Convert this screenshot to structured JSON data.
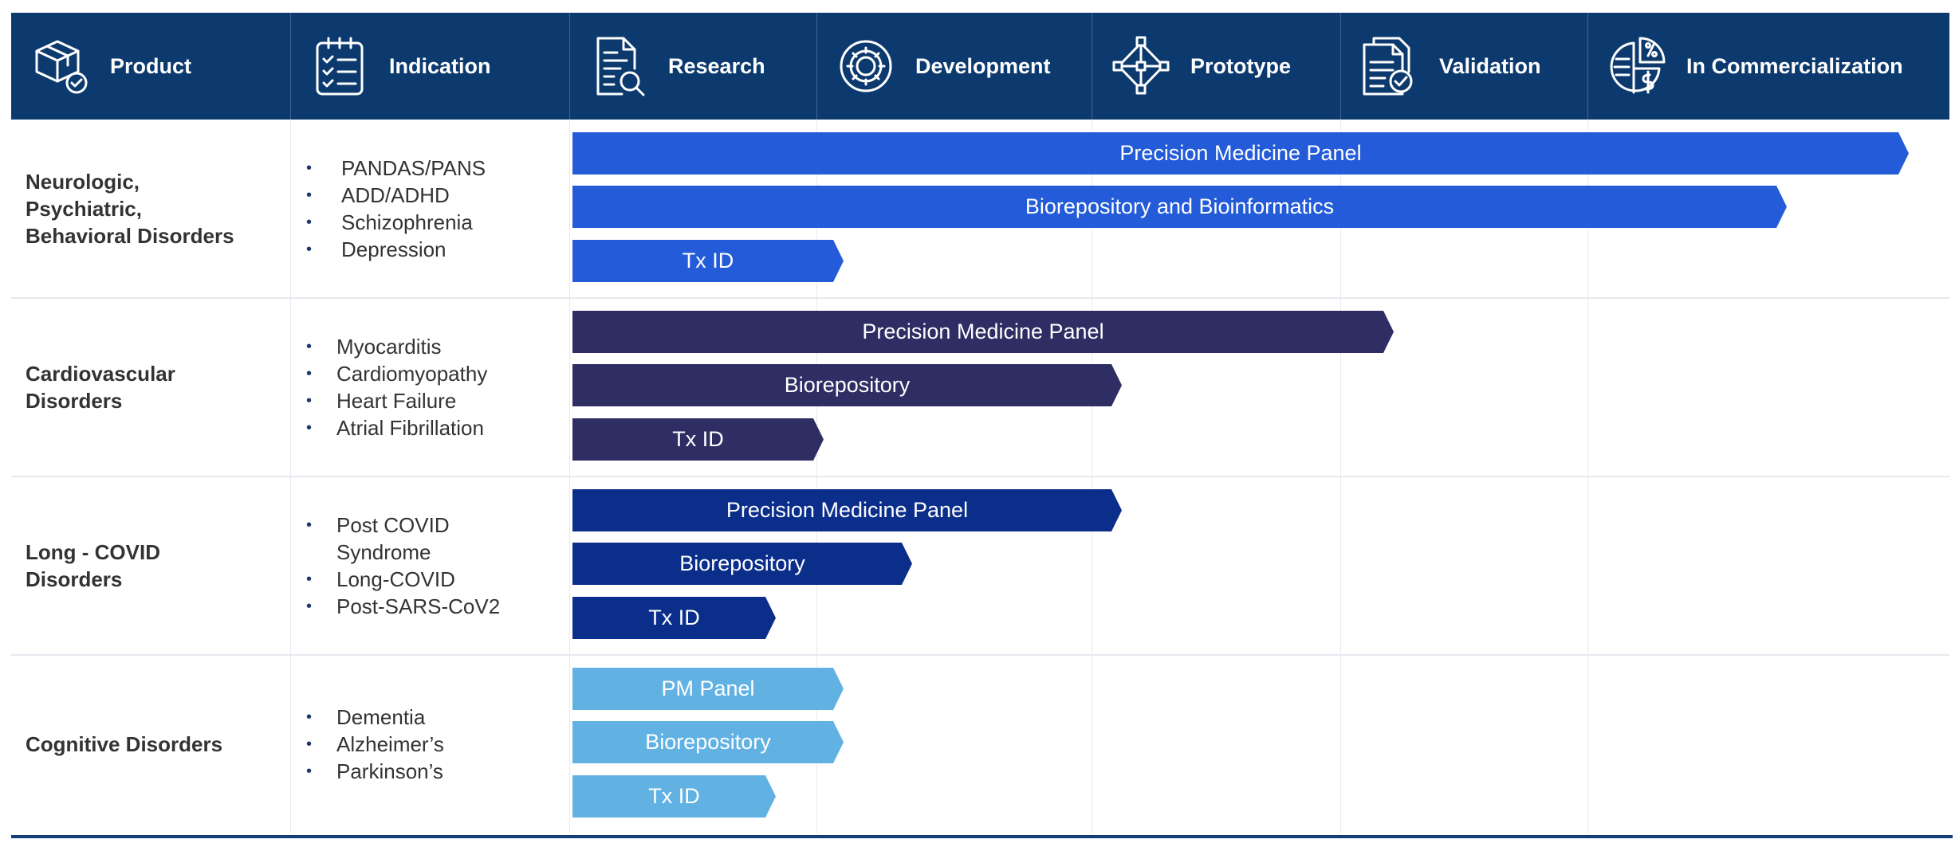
{
  "header": {
    "columns": [
      {
        "label": "Product",
        "icon": "product-box-icon"
      },
      {
        "label": "Indication",
        "icon": "checklist-clipboard-icon"
      },
      {
        "label": "Research",
        "icon": "document-search-icon"
      },
      {
        "label": "Development",
        "icon": "gear-icon"
      },
      {
        "label": "Prototype",
        "icon": "network-diamond-icon"
      },
      {
        "label": "Validation",
        "icon": "document-check-icon"
      },
      {
        "label": "In Commercialization",
        "icon": "pie-chart-money-icon"
      }
    ]
  },
  "stages": [
    "Research",
    "Development",
    "Prototype",
    "Validation",
    "In Commercialization"
  ],
  "rows": [
    {
      "product": "Neurologic,\nPsychiatric,\nBehavioral Disorders",
      "indications": [
        "PANDAS/PANS",
        "ADD/ADHD",
        "Schizophrenia",
        "Depression"
      ],
      "bars": [
        {
          "label": "Precision Medicine Panel",
          "progress": 0.985,
          "color": "#235bd8"
        },
        {
          "label": "Biorepository and Bioinformatics",
          "progress": 0.895,
          "color": "#235bd8"
        },
        {
          "label": "Tx ID",
          "progress": 0.2,
          "color": "#235bd8"
        }
      ]
    },
    {
      "product": "Cardiovascular\nDisorders",
      "indications": [
        "Myocarditis",
        "Cardiomyopathy",
        "Heart Failure",
        "Atrial Fibrillation"
      ],
      "bars": [
        {
          "label": "Precision Medicine Panel",
          "progress": 0.605,
          "color": "#2f2e64"
        },
        {
          "label": "Biorepository",
          "progress": 0.405,
          "color": "#2f2e64"
        },
        {
          "label": "Tx ID",
          "progress": 0.185,
          "color": "#2f2e64"
        }
      ]
    },
    {
      "product": "Long - COVID\nDisorders",
      "indications": [
        "Post COVID\nSyndrome",
        "Long-COVID",
        "Post-SARS-CoV2"
      ],
      "bars": [
        {
          "label": "Precision Medicine Panel",
          "progress": 0.405,
          "color": "#0a2e8a"
        },
        {
          "label": "Biorepository",
          "progress": 0.25,
          "color": "#0a2e8a"
        },
        {
          "label": "Tx ID",
          "progress": 0.15,
          "color": "#0a2e8a"
        }
      ]
    },
    {
      "product": "Cognitive Disorders",
      "indications": [
        "Dementia",
        "Alzheimer’s",
        "Parkinson’s"
      ],
      "bars": [
        {
          "label": "PM Panel",
          "progress": 0.2,
          "color": "#61b2e3"
        },
        {
          "label": "Biorepository",
          "progress": 0.2,
          "color": "#61b2e3"
        },
        {
          "label": "Tx ID",
          "progress": 0.15,
          "color": "#61b2e3"
        }
      ]
    }
  ],
  "colors": {
    "header_bg": "#0d3a6e",
    "header_text": "#ffffff",
    "bullet": "#1d3a6f",
    "text": "#333333",
    "bottom_rule": "#123f79"
  }
}
